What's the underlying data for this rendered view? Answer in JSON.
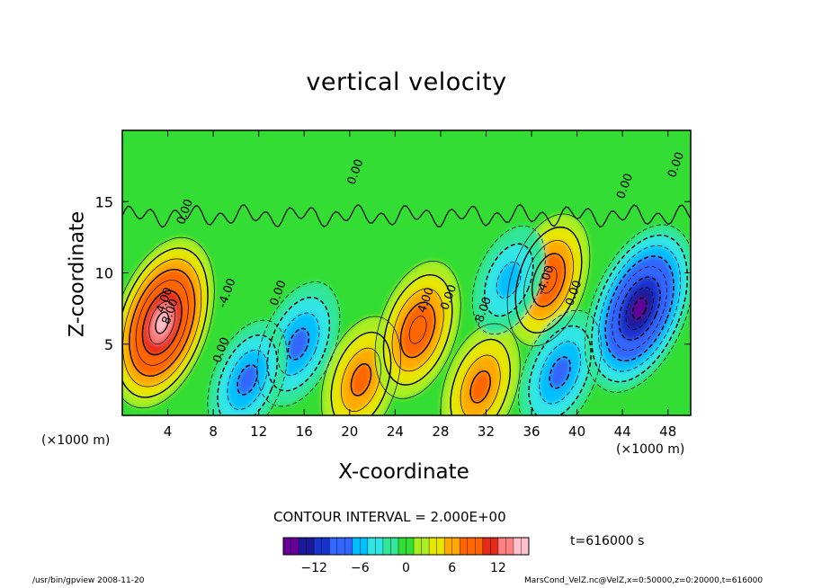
{
  "chart_data": {
    "type": "heatmap",
    "title": "vertical velocity",
    "xlabel": "X-coordinate",
    "ylabel": "Z-coordinate",
    "x_unit_label": "(×1000 m)",
    "x_ticks": [
      4,
      8,
      12,
      16,
      20,
      24,
      28,
      32,
      36,
      40,
      44,
      48
    ],
    "y_ticks": [
      5,
      10,
      15
    ],
    "xlim": [
      0,
      50
    ],
    "ylim": [
      0,
      20
    ],
    "contour_interval_label": "CONTOUR INTERVAL = 2.000E+00",
    "contour_labels": [
      "4.00",
      "8.00",
      "-4.00",
      "0.00",
      "0.00",
      "4.00",
      "-8.00",
      "-4.00",
      "0.00",
      "0.00",
      "0.00",
      "0.00",
      "0.00",
      "0.00"
    ],
    "colorbar": {
      "range": [
        -16,
        16
      ],
      "ticks": [
        -12,
        -6,
        0,
        6,
        12
      ],
      "colors": [
        "#660099",
        "#1a1a99",
        "#1a33cc",
        "#3366ff",
        "#00bfff",
        "#33e6e6",
        "#33e699",
        "#33dd33",
        "#aaee22",
        "#e6e600",
        "#ffaa00",
        "#ff6600",
        "#e62b1a",
        "#ff8080",
        "#ffc0cb"
      ]
    },
    "features": [
      {
        "type": "updraft",
        "x": 3.5,
        "z": 6.5,
        "peak": 16
      },
      {
        "type": "downdraft",
        "x": 15.5,
        "z": 5,
        "peak": -8
      },
      {
        "type": "downdraft",
        "x": 11,
        "z": 2.5,
        "peak": -7
      },
      {
        "type": "updraft",
        "x": 21,
        "z": 2.5,
        "peak": 8
      },
      {
        "type": "updraft",
        "x": 26,
        "z": 6,
        "peak": 10
      },
      {
        "type": "updraft",
        "x": 31.5,
        "z": 2,
        "peak": 8
      },
      {
        "type": "updraft",
        "x": 37.5,
        "z": 9.5,
        "peak": 9
      },
      {
        "type": "downdraft",
        "x": 38.5,
        "z": 3,
        "peak": -8
      },
      {
        "type": "downdraft",
        "x": 45.5,
        "z": 7.5,
        "peak": -16
      },
      {
        "type": "downdraft",
        "x": 34,
        "z": 9.5,
        "peak": -5
      }
    ],
    "time_label": "t=616000 s"
  },
  "footer": {
    "program": "/usr/bin/gpview   2008-11-20",
    "source": "MarsCond_VelZ.nc@VelZ,x=0:50000,z=0:20000,t=616000"
  }
}
